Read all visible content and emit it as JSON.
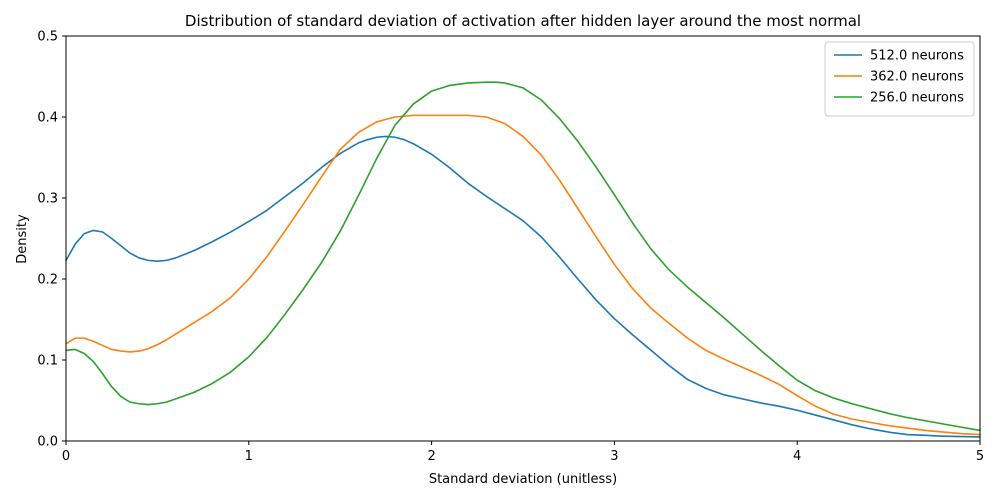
{
  "chart_data": {
    "type": "line",
    "title": "Distribution of standard deviation of activation after hidden layer around the most normal",
    "xlabel": "Standard deviation (unitless)",
    "ylabel": "Density",
    "xlim": [
      0,
      5
    ],
    "ylim": [
      0,
      0.5
    ],
    "xticks": [
      "0",
      "1",
      "2",
      "3",
      "4",
      "5"
    ],
    "yticks": [
      "0.0",
      "0.1",
      "0.2",
      "0.3",
      "0.4",
      "0.5"
    ],
    "grid": false,
    "legend_position": "top-right",
    "series": [
      {
        "name": "512.0 neurons",
        "color": "#1f77b4",
        "x": [
          0,
          0.05,
          0.1,
          0.15,
          0.2,
          0.25,
          0.3,
          0.35,
          0.4,
          0.45,
          0.5,
          0.55,
          0.6,
          0.7,
          0.8,
          0.9,
          1.0,
          1.1,
          1.2,
          1.3,
          1.4,
          1.5,
          1.6,
          1.65,
          1.7,
          1.75,
          1.8,
          1.85,
          1.9,
          2.0,
          2.1,
          2.2,
          2.3,
          2.4,
          2.5,
          2.6,
          2.7,
          2.8,
          2.9,
          3.0,
          3.1,
          3.2,
          3.3,
          3.4,
          3.5,
          3.6,
          3.7,
          3.8,
          3.9,
          4.0,
          4.1,
          4.2,
          4.3,
          4.4,
          4.5,
          4.6,
          4.7,
          4.8,
          4.9,
          5.0
        ],
        "y": [
          0.223,
          0.243,
          0.256,
          0.26,
          0.258,
          0.25,
          0.241,
          0.232,
          0.226,
          0.223,
          0.222,
          0.223,
          0.226,
          0.235,
          0.246,
          0.258,
          0.271,
          0.285,
          0.302,
          0.319,
          0.338,
          0.355,
          0.368,
          0.372,
          0.375,
          0.376,
          0.375,
          0.372,
          0.367,
          0.354,
          0.337,
          0.318,
          0.302,
          0.287,
          0.272,
          0.252,
          0.227,
          0.2,
          0.174,
          0.151,
          0.131,
          0.112,
          0.093,
          0.076,
          0.065,
          0.057,
          0.052,
          0.047,
          0.043,
          0.038,
          0.032,
          0.026,
          0.02,
          0.015,
          0.011,
          0.008,
          0.007,
          0.006,
          0.0055,
          0.005
        ]
      },
      {
        "name": "362.0 neurons",
        "color": "#ff7f0e",
        "x": [
          0,
          0.05,
          0.1,
          0.15,
          0.2,
          0.25,
          0.3,
          0.35,
          0.4,
          0.45,
          0.5,
          0.55,
          0.6,
          0.7,
          0.8,
          0.9,
          1.0,
          1.1,
          1.2,
          1.3,
          1.4,
          1.5,
          1.6,
          1.7,
          1.8,
          1.9,
          2.0,
          2.1,
          2.2,
          2.3,
          2.4,
          2.5,
          2.6,
          2.7,
          2.8,
          2.9,
          3.0,
          3.1,
          3.2,
          3.3,
          3.4,
          3.5,
          3.6,
          3.7,
          3.8,
          3.9,
          4.0,
          4.1,
          4.2,
          4.3,
          4.4,
          4.5,
          4.6,
          4.7,
          4.8,
          4.9,
          5.0
        ],
        "y": [
          0.12,
          0.127,
          0.127,
          0.123,
          0.118,
          0.113,
          0.111,
          0.11,
          0.111,
          0.114,
          0.119,
          0.125,
          0.132,
          0.146,
          0.16,
          0.177,
          0.2,
          0.228,
          0.26,
          0.293,
          0.327,
          0.36,
          0.381,
          0.394,
          0.4,
          0.402,
          0.402,
          0.402,
          0.402,
          0.4,
          0.392,
          0.376,
          0.353,
          0.322,
          0.287,
          0.252,
          0.218,
          0.188,
          0.164,
          0.145,
          0.127,
          0.112,
          0.101,
          0.091,
          0.081,
          0.07,
          0.056,
          0.043,
          0.033,
          0.027,
          0.023,
          0.019,
          0.016,
          0.013,
          0.011,
          0.009,
          0.008
        ]
      },
      {
        "name": "256.0 neurons",
        "color": "#2ca02c",
        "x": [
          0,
          0.05,
          0.1,
          0.15,
          0.2,
          0.25,
          0.3,
          0.35,
          0.4,
          0.45,
          0.5,
          0.55,
          0.6,
          0.7,
          0.8,
          0.9,
          1.0,
          1.1,
          1.2,
          1.3,
          1.4,
          1.5,
          1.6,
          1.7,
          1.8,
          1.9,
          2.0,
          2.1,
          2.2,
          2.3,
          2.35,
          2.4,
          2.5,
          2.6,
          2.7,
          2.8,
          2.9,
          3.0,
          3.1,
          3.2,
          3.3,
          3.4,
          3.5,
          3.6,
          3.7,
          3.8,
          3.9,
          4.0,
          4.1,
          4.2,
          4.3,
          4.4,
          4.5,
          4.6,
          4.7,
          4.8,
          4.9,
          5.0
        ],
        "y": [
          0.112,
          0.113,
          0.108,
          0.098,
          0.083,
          0.067,
          0.055,
          0.048,
          0.046,
          0.045,
          0.046,
          0.048,
          0.052,
          0.06,
          0.071,
          0.085,
          0.104,
          0.128,
          0.157,
          0.188,
          0.221,
          0.259,
          0.303,
          0.349,
          0.39,
          0.416,
          0.432,
          0.439,
          0.442,
          0.443,
          0.443,
          0.442,
          0.436,
          0.421,
          0.398,
          0.37,
          0.338,
          0.304,
          0.269,
          0.237,
          0.211,
          0.19,
          0.171,
          0.152,
          0.132,
          0.112,
          0.093,
          0.075,
          0.062,
          0.053,
          0.046,
          0.04,
          0.034,
          0.029,
          0.025,
          0.021,
          0.017,
          0.013
        ]
      }
    ]
  }
}
